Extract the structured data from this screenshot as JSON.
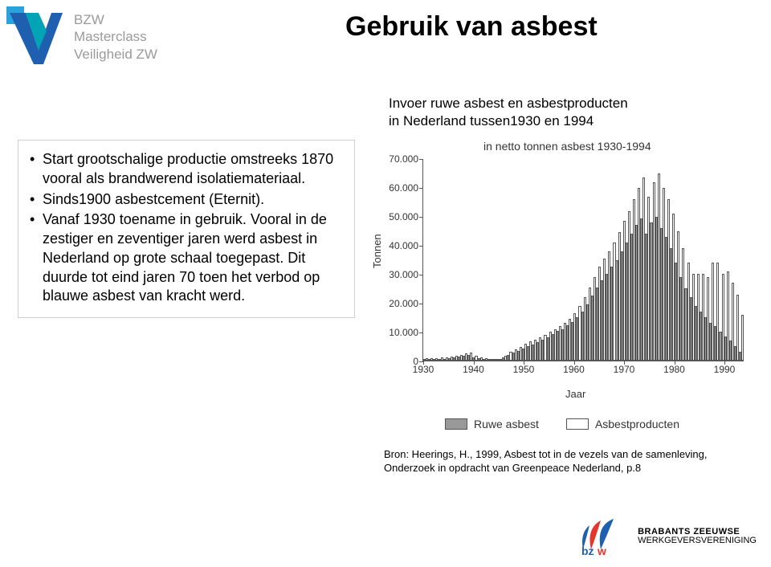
{
  "logo": {
    "line1": "BZW",
    "line2": "Masterclass",
    "line3": "Veiligheid ZW",
    "text_color": "#9a9a9a",
    "v_blue": "#1f5fb0",
    "v_teal": "#00a4b4",
    "v_square": "#2aa3dd"
  },
  "title": "Gebruik van asbest",
  "subtitle": {
    "line1": "Invoer ruwe asbest en asbestproducten",
    "line2": "in Nederland tussen1930 en 1994"
  },
  "bullets": {
    "b1": "Start grootschalige productie omstreeks 1870 vooral als brandwerend isolatiemateriaal.",
    "b2": "Sinds1900 asbestcement (Eternit).",
    "b3": "Vanaf 1930 toename in gebruik. Vooral in de zestiger en zeventiger jaren werd asbest in Nederland op grote schaal toegepast. Dit duurde tot eind jaren 70 toen het verbod op blauwe asbest van kracht werd."
  },
  "chart": {
    "type": "bar",
    "title": "in netto tonnen asbest 1930-1994",
    "ylabel": "Tonnen",
    "xlabel": "Jaar",
    "ylim": [
      0,
      70000
    ],
    "yticks": [
      0,
      10000,
      20000,
      30000,
      40000,
      50000,
      60000,
      70000
    ],
    "ytick_labels": [
      "0",
      "10.000",
      "20.000",
      "30.000",
      "40.000",
      "50.000",
      "60.000",
      "70.000"
    ],
    "xticks": [
      1930,
      1940,
      1950,
      1960,
      1970,
      1980,
      1990
    ],
    "x_start": 1930,
    "x_end": 1994,
    "bar_fill_ruwe": "#999999",
    "bar_fill_prod": "#ffffff",
    "bar_border": "#555555",
    "axis_color": "#555555",
    "legend": {
      "ruwe": "Ruwe asbest",
      "prod": "Asbestproducten"
    },
    "series": [
      {
        "y": 1930,
        "r": 300,
        "p": 800
      },
      {
        "y": 1931,
        "r": 350,
        "p": 900
      },
      {
        "y": 1932,
        "r": 400,
        "p": 950
      },
      {
        "y": 1933,
        "r": 500,
        "p": 1000
      },
      {
        "y": 1934,
        "r": 600,
        "p": 1200
      },
      {
        "y": 1935,
        "r": 800,
        "p": 1400
      },
      {
        "y": 1936,
        "r": 1000,
        "p": 1600
      },
      {
        "y": 1937,
        "r": 1300,
        "p": 2000
      },
      {
        "y": 1938,
        "r": 1600,
        "p": 2400
      },
      {
        "y": 1939,
        "r": 1900,
        "p": 2800
      },
      {
        "y": 1940,
        "r": 1200,
        "p": 1800
      },
      {
        "y": 1941,
        "r": 800,
        "p": 1200
      },
      {
        "y": 1942,
        "r": 500,
        "p": 800
      },
      {
        "y": 1943,
        "r": 300,
        "p": 500
      },
      {
        "y": 1944,
        "r": 200,
        "p": 400
      },
      {
        "y": 1945,
        "r": 400,
        "p": 600
      },
      {
        "y": 1946,
        "r": 1200,
        "p": 1800
      },
      {
        "y": 1947,
        "r": 2000,
        "p": 3000
      },
      {
        "y": 1948,
        "r": 2800,
        "p": 4000
      },
      {
        "y": 1949,
        "r": 3400,
        "p": 4800
      },
      {
        "y": 1950,
        "r": 4200,
        "p": 5800
      },
      {
        "y": 1951,
        "r": 5000,
        "p": 6600
      },
      {
        "y": 1952,
        "r": 5600,
        "p": 7200
      },
      {
        "y": 1953,
        "r": 6400,
        "p": 8200
      },
      {
        "y": 1954,
        "r": 7200,
        "p": 9000
      },
      {
        "y": 1955,
        "r": 8200,
        "p": 10000
      },
      {
        "y": 1956,
        "r": 9200,
        "p": 11000
      },
      {
        "y": 1957,
        "r": 10200,
        "p": 12000
      },
      {
        "y": 1958,
        "r": 11000,
        "p": 13000
      },
      {
        "y": 1959,
        "r": 12200,
        "p": 14500
      },
      {
        "y": 1960,
        "r": 13500,
        "p": 16500
      },
      {
        "y": 1961,
        "r": 15000,
        "p": 19000
      },
      {
        "y": 1962,
        "r": 17000,
        "p": 22000
      },
      {
        "y": 1963,
        "r": 19500,
        "p": 25500
      },
      {
        "y": 1964,
        "r": 22500,
        "p": 29000
      },
      {
        "y": 1965,
        "r": 25500,
        "p": 32500
      },
      {
        "y": 1966,
        "r": 28000,
        "p": 35500
      },
      {
        "y": 1967,
        "r": 30000,
        "p": 38000
      },
      {
        "y": 1968,
        "r": 32500,
        "p": 41000
      },
      {
        "y": 1969,
        "r": 35000,
        "p": 44500
      },
      {
        "y": 1970,
        "r": 38000,
        "p": 48500
      },
      {
        "y": 1971,
        "r": 41000,
        "p": 52000
      },
      {
        "y": 1972,
        "r": 44000,
        "p": 56000
      },
      {
        "y": 1973,
        "r": 47000,
        "p": 60000
      },
      {
        "y": 1974,
        "r": 49500,
        "p": 63500
      },
      {
        "y": 1975,
        "r": 44000,
        "p": 57000
      },
      {
        "y": 1976,
        "r": 48000,
        "p": 62000
      },
      {
        "y": 1977,
        "r": 50000,
        "p": 65000
      },
      {
        "y": 1978,
        "r": 46000,
        "p": 60000
      },
      {
        "y": 1979,
        "r": 43000,
        "p": 56000
      },
      {
        "y": 1980,
        "r": 39000,
        "p": 51000
      },
      {
        "y": 1981,
        "r": 34000,
        "p": 45000
      },
      {
        "y": 1982,
        "r": 29000,
        "p": 39000
      },
      {
        "y": 1983,
        "r": 25000,
        "p": 34000
      },
      {
        "y": 1984,
        "r": 22000,
        "p": 30000
      },
      {
        "y": 1985,
        "r": 19000,
        "p": 30000
      },
      {
        "y": 1986,
        "r": 17000,
        "p": 30000
      },
      {
        "y": 1987,
        "r": 15000,
        "p": 29000
      },
      {
        "y": 1988,
        "r": 13000,
        "p": 34000
      },
      {
        "y": 1989,
        "r": 12000,
        "p": 34000
      },
      {
        "y": 1990,
        "r": 10000,
        "p": 30000
      },
      {
        "y": 1991,
        "r": 8500,
        "p": 31000
      },
      {
        "y": 1992,
        "r": 7000,
        "p": 27000
      },
      {
        "y": 1993,
        "r": 5000,
        "p": 23000
      },
      {
        "y": 1994,
        "r": 3000,
        "p": 16000
      }
    ]
  },
  "source": {
    "line1": "Bron: Heerings, H., 1999, Asbest tot in de vezels van de samenleving,",
    "line2": "Onderzoek in opdracht van Greenpeace Nederland, p.8"
  },
  "footer": {
    "line1": "BRABANTS ZEEUWSE",
    "line2": "WERKGEVERSVERENIGING",
    "bzw_red": "#e6352b",
    "bzw_blue": "#1f5fb0"
  }
}
